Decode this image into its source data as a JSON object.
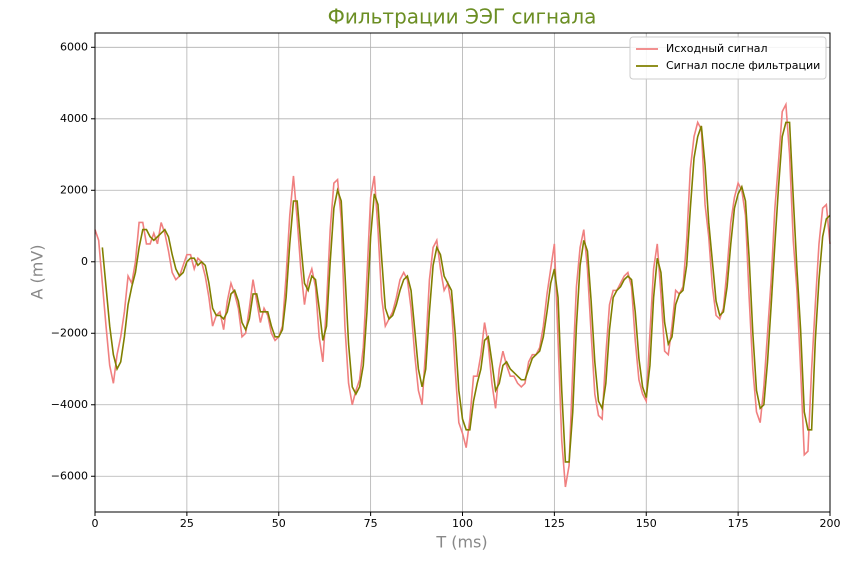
{
  "chart_data": {
    "type": "line",
    "title": "Фильтрации ЭЭГ сигнала",
    "x_label": "T (ms)",
    "y_label": "A (mV)",
    "xlim": [
      0,
      200
    ],
    "ylim": [
      -7000,
      6400
    ],
    "xticks": [
      0,
      25,
      50,
      75,
      100,
      125,
      150,
      175,
      200
    ],
    "yticks": [
      {
        "value": -6000,
        "label": "−6000"
      },
      {
        "value": -4000,
        "label": "−4000"
      },
      {
        "value": -2000,
        "label": "−2000"
      },
      0,
      2000,
      4000,
      6000
    ],
    "grid": true,
    "legend": "upper right",
    "x": [
      0,
      1,
      2,
      3,
      4,
      5,
      6,
      7,
      8,
      9,
      10,
      11,
      12,
      13,
      14,
      15,
      16,
      17,
      18,
      19,
      20,
      21,
      22,
      23,
      24,
      25,
      26,
      27,
      28,
      29,
      30,
      31,
      32,
      33,
      34,
      35,
      36,
      37,
      38,
      39,
      40,
      41,
      42,
      43,
      44,
      45,
      46,
      47,
      48,
      49,
      50,
      51,
      52,
      53,
      54,
      55,
      56,
      57,
      58,
      59,
      60,
      61,
      62,
      63,
      64,
      65,
      66,
      67,
      68,
      69,
      70,
      71,
      72,
      73,
      74,
      75,
      76,
      77,
      78,
      79,
      80,
      81,
      82,
      83,
      84,
      85,
      86,
      87,
      88,
      89,
      90,
      91,
      92,
      93,
      94,
      95,
      96,
      97,
      98,
      99,
      100,
      101,
      102,
      103,
      104,
      105,
      106,
      107,
      108,
      109,
      110,
      111,
      112,
      113,
      114,
      115,
      116,
      117,
      118,
      119,
      120,
      121,
      122,
      123,
      124,
      125,
      126,
      127,
      128,
      129,
      130,
      131,
      132,
      133,
      134,
      135,
      136,
      137,
      138,
      139,
      140,
      141,
      142,
      143,
      144,
      145,
      146,
      147,
      148,
      149,
      150,
      151,
      152,
      153,
      154,
      155,
      156,
      157,
      158,
      159,
      160,
      161,
      162,
      163,
      164,
      165,
      166,
      167,
      168,
      169,
      170,
      171,
      172,
      173,
      174,
      175,
      176,
      177,
      178,
      179,
      180,
      181,
      182,
      183,
      184,
      185,
      186,
      187,
      188,
      189,
      190,
      191,
      192,
      193,
      194,
      195,
      196,
      197,
      198,
      199,
      200
    ],
    "series": [
      {
        "name": "Исходный сигнал",
        "color": "#f08080",
        "values": [
          900,
          600,
          -600,
          -1800,
          -2900,
          -3400,
          -2600,
          -2100,
          -1400,
          -400,
          -600,
          0,
          1100,
          1100,
          500,
          500,
          800,
          500,
          1100,
          800,
          300,
          -300,
          -500,
          -400,
          -100,
          200,
          200,
          -200,
          100,
          0,
          -400,
          -1000,
          -1800,
          -1500,
          -1400,
          -1900,
          -1100,
          -600,
          -900,
          -1300,
          -2100,
          -2000,
          -1300,
          -500,
          -1100,
          -1700,
          -1300,
          -1500,
          -2000,
          -2200,
          -2100,
          -1800,
          -400,
          1300,
          2400,
          1200,
          -200,
          -1200,
          -500,
          -200,
          -700,
          -2100,
          -2800,
          -1200,
          900,
          2200,
          2300,
          1200,
          -1800,
          -3400,
          -4000,
          -3600,
          -3300,
          -2400,
          -400,
          1800,
          2400,
          900,
          -1000,
          -1800,
          -1600,
          -1400,
          -1000,
          -500,
          -300,
          -500,
          -1300,
          -2600,
          -3600,
          -4000,
          -2400,
          -500,
          400,
          600,
          -200,
          -800,
          -600,
          -1200,
          -3000,
          -4500,
          -4800,
          -5200,
          -4400,
          -3200,
          -3200,
          -2600,
          -1700,
          -2300,
          -3400,
          -4100,
          -3000,
          -2500,
          -2900,
          -3200,
          -3200,
          -3400,
          -3500,
          -3400,
          -2800,
          -2600,
          -2600,
          -2400,
          -1800,
          -900,
          -200,
          500,
          -2200,
          -5000,
          -6300,
          -5700,
          -3000,
          -700,
          400,
          900,
          -200,
          -2000,
          -3700,
          -4300,
          -4400,
          -2600,
          -1200,
          -800,
          -800,
          -600,
          -400,
          -300,
          -700,
          -2200,
          -3300,
          -3700,
          -3900,
          -2000,
          -200,
          500,
          -900,
          -2500,
          -2600,
          -1800,
          -800,
          -900,
          -700,
          600,
          2600,
          3500,
          3900,
          3700,
          1600,
          700,
          -700,
          -1500,
          -1600,
          -1300,
          -200,
          1100,
          1800,
          2200,
          2000,
          1300,
          -1000,
          -3000,
          -4200,
          -4500,
          -3500,
          -2000,
          -500,
          1500,
          2800,
          4200,
          4400,
          3000,
          600,
          -800,
          -3000,
          -5400,
          -5300,
          -3000,
          -1200,
          500,
          1500,
          1600,
          500
        ]
      },
      {
        "name": "Сигнал после фильтрации",
        "color": "#808000",
        "values": [
          null,
          null,
          400,
          -700,
          -1800,
          -2600,
          -3000,
          -2800,
          -2100,
          -1200,
          -700,
          -300,
          400,
          900,
          900,
          700,
          600,
          700,
          800,
          900,
          700,
          200,
          -200,
          -400,
          -300,
          0,
          100,
          100,
          -100,
          0,
          -100,
          -600,
          -1300,
          -1500,
          -1500,
          -1600,
          -1400,
          -900,
          -800,
          -1100,
          -1700,
          -1900,
          -1600,
          -900,
          -900,
          -1400,
          -1400,
          -1400,
          -1800,
          -2100,
          -2100,
          -1900,
          -1000,
          500,
          1700,
          1700,
          500,
          -600,
          -800,
          -400,
          -500,
          -1300,
          -2200,
          -1800,
          0,
          1500,
          2000,
          1700,
          -300,
          -2300,
          -3500,
          -3700,
          -3500,
          -2900,
          -1400,
          700,
          1900,
          1600,
          100,
          -1300,
          -1600,
          -1500,
          -1200,
          -800,
          -500,
          -400,
          -800,
          -1900,
          -3000,
          -3500,
          -3000,
          -1400,
          -100,
          400,
          200,
          -400,
          -600,
          -800,
          -2000,
          -3600,
          -4400,
          -4700,
          -4700,
          -3900,
          -3400,
          -3000,
          -2200,
          -2100,
          -2800,
          -3600,
          -3400,
          -2900,
          -2800,
          -3000,
          -3100,
          -3200,
          -3300,
          -3300,
          -3000,
          -2700,
          -2600,
          -2500,
          -2100,
          -1400,
          -600,
          -200,
          -1000,
          -3600,
          -5600,
          -5600,
          -4200,
          -1800,
          -100,
          600,
          300,
          -1100,
          -2800,
          -3900,
          -4100,
          -3400,
          -1900,
          -1000,
          -800,
          -700,
          -500,
          -400,
          -500,
          -1400,
          -2700,
          -3500,
          -3800,
          -2900,
          -1000,
          100,
          -300,
          -1700,
          -2300,
          -2100,
          -1200,
          -900,
          -800,
          -100,
          1500,
          2900,
          3500,
          3800,
          2700,
          1100,
          0,
          -1100,
          -1500,
          -1400,
          -700,
          500,
          1500,
          1900,
          2100,
          1700,
          100,
          -2000,
          -3600,
          -4100,
          -4000,
          -2800,
          -1200,
          500,
          2100,
          3500,
          3900,
          3900,
          1800,
          -200,
          -1900,
          -4200,
          -4700,
          -4700,
          -2200,
          -500,
          700,
          1200,
          1300
        ]
      }
    ]
  }
}
